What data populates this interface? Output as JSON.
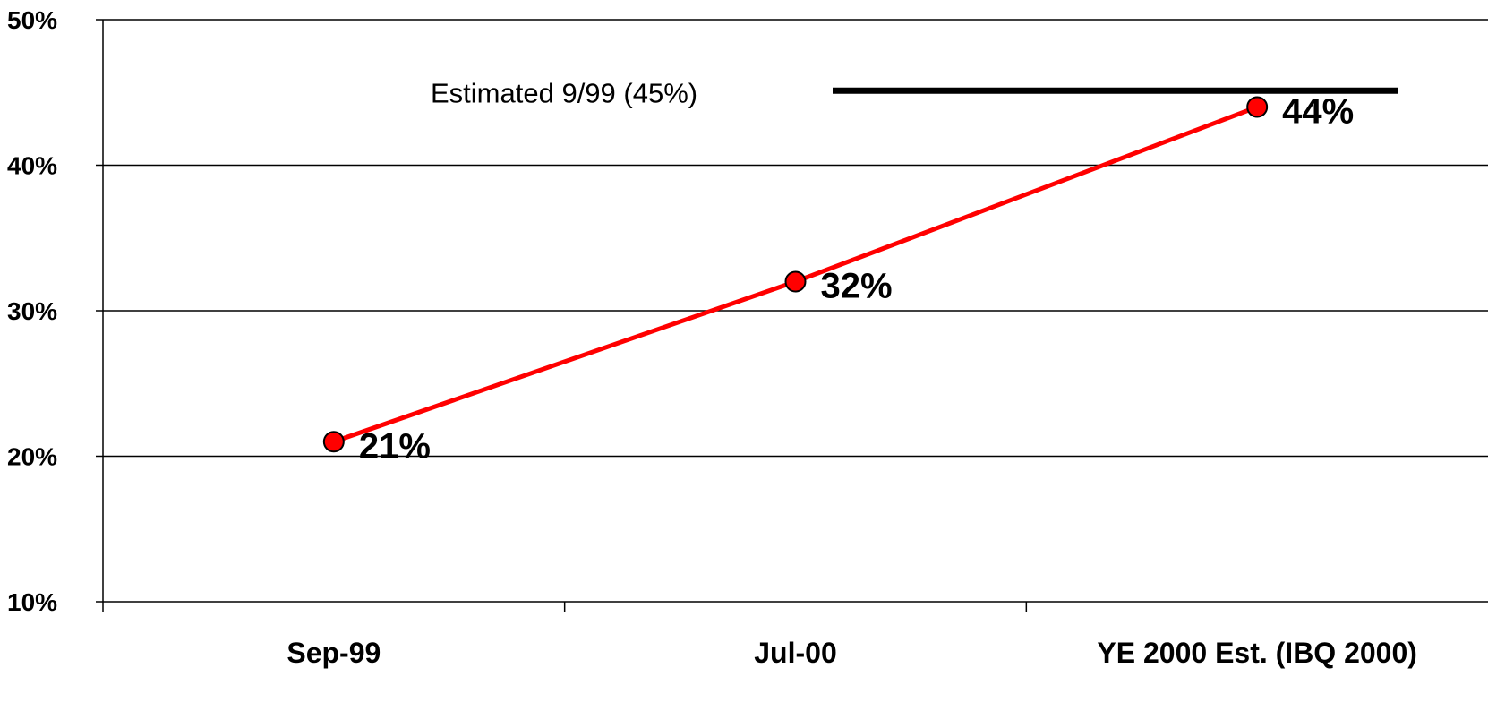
{
  "chart_data": {
    "type": "line",
    "categories": [
      "Sep-99",
      "Jul-00",
      "YE 2000 Est. (IBQ 2000)"
    ],
    "series": [
      {
        "values": [
          21,
          32,
          44
        ],
        "labels": [
          "21%",
          "32%",
          "44%"
        ],
        "color": "#ff0000"
      }
    ],
    "ylim": [
      10,
      50
    ],
    "yticks": [
      10,
      20,
      30,
      40,
      50
    ],
    "ytick_labels": [
      "10%",
      "20%",
      "30%",
      "40%",
      "50%"
    ],
    "grid": true,
    "reference_line": {
      "value": 45,
      "label": "Estimated 9/99 (45%)",
      "color": "#000000"
    },
    "marker_color": "#ff0000"
  }
}
